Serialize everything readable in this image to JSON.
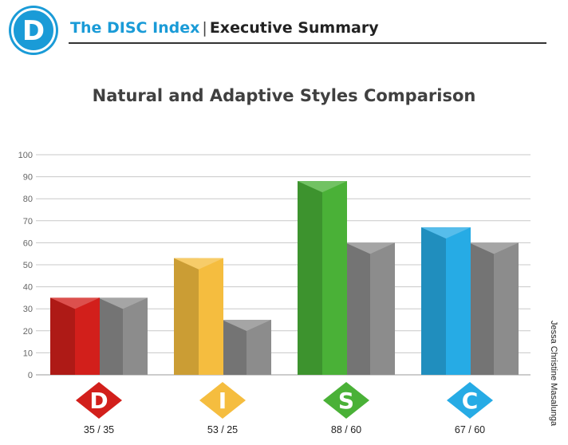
{
  "header": {
    "logo_letter": "D",
    "brand": "The DISC Index",
    "separator": "|",
    "section": "Executive Summary"
  },
  "side_label": "Jessa Christine  Masalunga",
  "colors": {
    "brand": "#1a9bd7",
    "D": "#d21f1b",
    "I": "#f5bd3f",
    "S": "#4ab137",
    "C": "#26abe5",
    "adaptive": "#8c8c8c"
  },
  "chart_data": {
    "type": "bar",
    "title": "Natural and Adaptive Styles Comparison",
    "categories": [
      "D",
      "I",
      "S",
      "C"
    ],
    "series": [
      {
        "values": [
          35,
          53,
          88,
          67
        ]
      },
      {
        "values": [
          35,
          25,
          60,
          60
        ]
      }
    ],
    "value_labels": [
      "35 / 35",
      "53 / 25",
      "88 / 60",
      "67 / 60"
    ],
    "ylim": [
      0,
      100
    ],
    "yticks": [
      0,
      10,
      20,
      30,
      40,
      50,
      60,
      70,
      80,
      90,
      100
    ],
    "grid": true
  }
}
